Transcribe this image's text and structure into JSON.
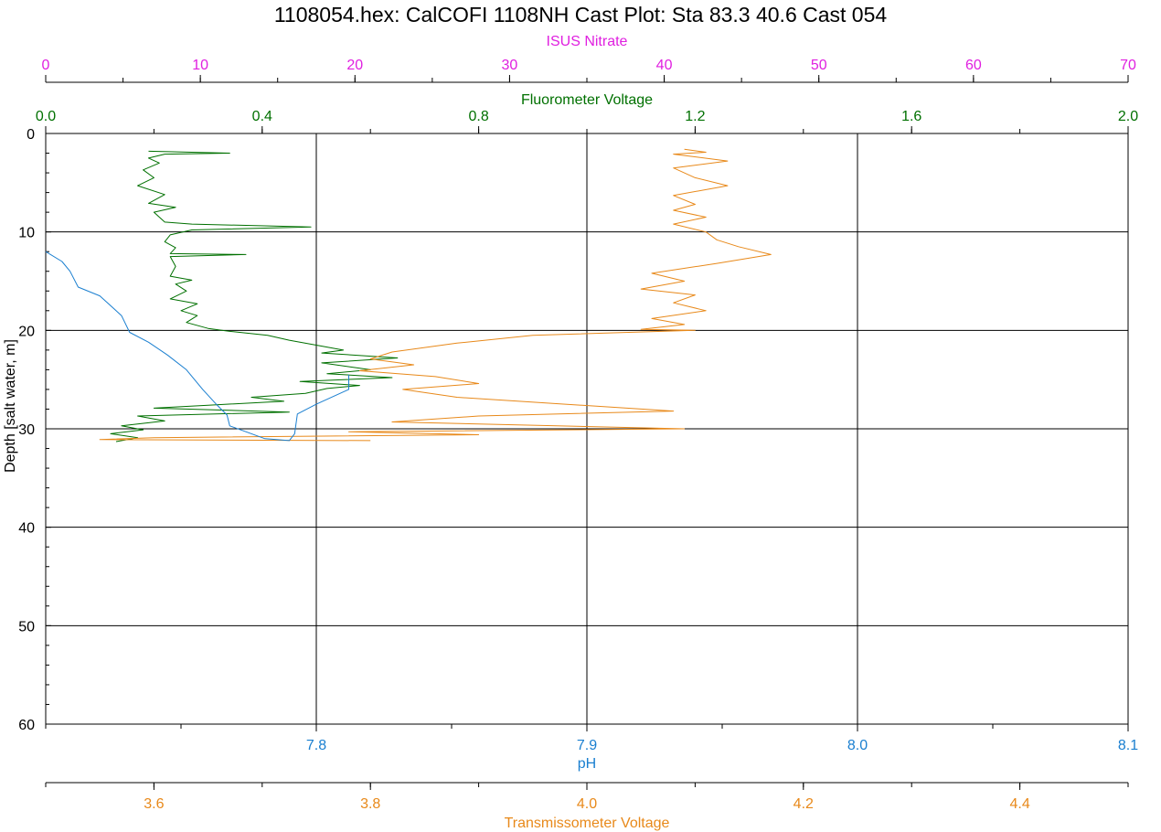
{
  "colors": {
    "nitrate": "#e020e0",
    "fluorometer": "#007000",
    "ph": "#1a7fd0",
    "transmissometer": "#e8891a",
    "transmissometer_dark": "#e07010",
    "axis": "#000000",
    "grid": "#000000"
  },
  "chart_data": {
    "type": "line",
    "title": "1108054.hex: CalCOFI 1108NH Cast Plot:  Sta 83.3  40.6  Cast 054",
    "grid": true,
    "y_axis": {
      "label": "Depth [salt water, m]",
      "range": [
        0,
        60
      ],
      "inverted": true,
      "ticks": [
        "0",
        "10",
        "20",
        "30",
        "40",
        "50",
        "60"
      ],
      "tick_values": [
        0,
        10,
        20,
        30,
        40,
        50,
        60
      ]
    },
    "x_axes": [
      {
        "id": "nitrate",
        "label": "ISUS Nitrate",
        "position": "top-outer",
        "range": [
          0,
          70
        ],
        "ticks": [
          "0",
          "10",
          "20",
          "30",
          "40",
          "50",
          "60",
          "70"
        ],
        "tick_values": [
          0,
          10,
          20,
          30,
          40,
          50,
          60,
          70
        ]
      },
      {
        "id": "fluorometer",
        "label": "Fluorometer Voltage",
        "position": "top-inner",
        "range": [
          0,
          2
        ],
        "ticks": [
          "0.0",
          "0.4",
          "0.8",
          "1.2",
          "1.6",
          "2.0"
        ],
        "tick_values": [
          0,
          0.4,
          0.8,
          1.2,
          1.6,
          2.0
        ]
      },
      {
        "id": "ph",
        "label": "pH",
        "position": "bottom-inner",
        "range": [
          7.7,
          8.1
        ],
        "ticks": [
          "7.8",
          "7.9",
          "8.0",
          "8.1"
        ],
        "tick_values": [
          7.8,
          7.9,
          8.0,
          8.1
        ]
      },
      {
        "id": "transmissometer",
        "label": "Transmissometer Voltage",
        "position": "bottom-outer",
        "range": [
          3.5,
          4.5
        ],
        "ticks": [
          "3.6",
          "3.8",
          "4.0",
          "4.2",
          "4.4"
        ],
        "tick_values": [
          3.6,
          3.8,
          4.0,
          4.2,
          4.4
        ]
      }
    ],
    "series": [
      {
        "axis": "fluorometer",
        "points": [
          [
            0.19,
            1.8
          ],
          [
            0.34,
            2.0
          ],
          [
            0.22,
            2.1
          ],
          [
            0.19,
            2.5
          ],
          [
            0.21,
            3.0
          ],
          [
            0.18,
            3.7
          ],
          [
            0.2,
            4.5
          ],
          [
            0.17,
            5.3
          ],
          [
            0.22,
            6.2
          ],
          [
            0.19,
            7.1
          ],
          [
            0.24,
            7.5
          ],
          [
            0.2,
            8.0
          ],
          [
            0.22,
            9.0
          ],
          [
            0.27,
            9.2
          ],
          [
            0.49,
            9.5
          ],
          [
            0.27,
            9.8
          ],
          [
            0.23,
            10.3
          ],
          [
            0.22,
            11.0
          ],
          [
            0.24,
            11.6
          ],
          [
            0.23,
            12.2
          ],
          [
            0.37,
            12.3
          ],
          [
            0.23,
            12.5
          ],
          [
            0.24,
            13.5
          ],
          [
            0.23,
            14.5
          ],
          [
            0.27,
            14.9
          ],
          [
            0.24,
            15.3
          ],
          [
            0.26,
            16.0
          ],
          [
            0.23,
            16.8
          ],
          [
            0.28,
            17.3
          ],
          [
            0.25,
            18.0
          ],
          [
            0.28,
            18.5
          ],
          [
            0.26,
            19.2
          ],
          [
            0.3,
            19.8
          ],
          [
            0.34,
            20.1
          ],
          [
            0.41,
            20.5
          ],
          [
            0.45,
            21.0
          ],
          [
            0.5,
            21.5
          ],
          [
            0.55,
            22.0
          ],
          [
            0.51,
            22.3
          ],
          [
            0.65,
            22.8
          ],
          [
            0.51,
            23.3
          ],
          [
            0.6,
            24.0
          ],
          [
            0.52,
            24.4
          ],
          [
            0.64,
            24.8
          ],
          [
            0.47,
            25.2
          ],
          [
            0.58,
            25.6
          ],
          [
            0.52,
            25.9
          ],
          [
            0.48,
            26.4
          ],
          [
            0.38,
            26.8
          ],
          [
            0.44,
            27.2
          ],
          [
            0.3,
            27.6
          ],
          [
            0.2,
            27.9
          ],
          [
            0.45,
            28.3
          ],
          [
            0.17,
            28.7
          ],
          [
            0.22,
            29.2
          ],
          [
            0.14,
            29.7
          ],
          [
            0.18,
            30.1
          ],
          [
            0.12,
            30.5
          ],
          [
            0.17,
            30.9
          ],
          [
            0.13,
            31.3
          ]
        ]
      },
      {
        "axis": "transmissometer",
        "points": [
          [
            4.09,
            1.6
          ],
          [
            4.11,
            1.9
          ],
          [
            4.08,
            2.1
          ],
          [
            4.13,
            2.8
          ],
          [
            4.08,
            3.5
          ],
          [
            4.1,
            4.5
          ],
          [
            4.13,
            5.3
          ],
          [
            4.08,
            6.3
          ],
          [
            4.1,
            7.2
          ],
          [
            4.08,
            7.8
          ],
          [
            4.11,
            8.5
          ],
          [
            4.08,
            9.2
          ],
          [
            4.11,
            10.0
          ],
          [
            4.12,
            10.8
          ],
          [
            4.14,
            11.5
          ],
          [
            4.17,
            12.3
          ],
          [
            4.12,
            13.2
          ],
          [
            4.06,
            14.2
          ],
          [
            4.09,
            15.0
          ],
          [
            4.05,
            15.8
          ],
          [
            4.1,
            16.4
          ],
          [
            4.08,
            17.2
          ],
          [
            4.11,
            18.0
          ],
          [
            4.06,
            18.8
          ],
          [
            4.09,
            19.4
          ],
          [
            4.05,
            19.9
          ],
          [
            4.1,
            20.0
          ],
          [
            3.95,
            20.5
          ],
          [
            3.88,
            21.3
          ],
          [
            3.82,
            22.2
          ],
          [
            3.8,
            22.9
          ],
          [
            3.84,
            23.5
          ],
          [
            3.79,
            24.1
          ],
          [
            3.86,
            24.7
          ],
          [
            3.9,
            25.4
          ],
          [
            3.83,
            26.0
          ],
          [
            3.88,
            26.8
          ],
          [
            3.98,
            27.5
          ],
          [
            4.08,
            28.2
          ],
          [
            3.9,
            28.7
          ],
          [
            3.82,
            29.3
          ],
          [
            4.09,
            30.0
          ],
          [
            3.78,
            30.3
          ],
          [
            3.9,
            30.6
          ],
          [
            3.6,
            30.9
          ],
          [
            3.55,
            31.1
          ],
          [
            3.8,
            31.2
          ]
        ]
      },
      {
        "axis": "ph",
        "points": [
          [
            7.7,
            12.0
          ],
          [
            7.706,
            13.0
          ],
          [
            7.709,
            14.0
          ],
          [
            7.712,
            15.6
          ],
          [
            7.72,
            16.5
          ],
          [
            7.728,
            18.5
          ],
          [
            7.731,
            20.2
          ],
          [
            7.738,
            21.2
          ],
          [
            7.745,
            22.5
          ],
          [
            7.752,
            24.0
          ],
          [
            7.758,
            26.0
          ],
          [
            7.763,
            27.5
          ],
          [
            7.767,
            28.6
          ],
          [
            7.768,
            29.7
          ],
          [
            7.775,
            30.4
          ],
          [
            7.781,
            31.0
          ],
          [
            7.79,
            31.2
          ],
          [
            7.792,
            30.5
          ],
          [
            7.793,
            28.5
          ],
          [
            7.8,
            27.5
          ],
          [
            7.812,
            26.0
          ],
          [
            7.812,
            24.5
          ]
        ]
      }
    ]
  }
}
